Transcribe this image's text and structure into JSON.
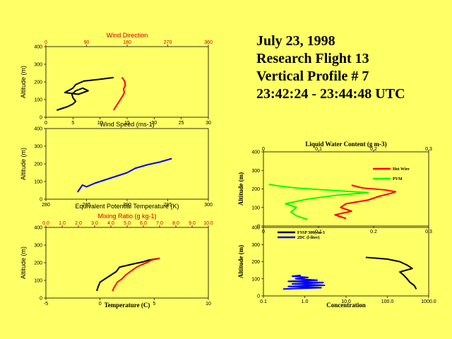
{
  "header": {
    "date": "July 23, 1998",
    "flight": "Research Flight 13",
    "profile": "Vertical Profile # 7",
    "time": "23:42:24 - 23:44:48 UTC"
  },
  "colors": {
    "background": "#ffff66",
    "black": "#000000",
    "red": "#ff0000",
    "blue": "#0000ff",
    "green": "#00ff00",
    "top_axis": "#cc0000"
  },
  "chart_data": [
    {
      "id": "wind",
      "type": "line",
      "xlabel": "Wind Speed (ms-1)",
      "x2label": "Wind Direction",
      "ylabel": "Altitude (m)",
      "xlim": [
        0,
        30
      ],
      "x2lim": [
        0,
        360
      ],
      "ylim": [
        0,
        400
      ],
      "xticks": [
        "0",
        "5",
        "10",
        "15",
        "20",
        "25",
        "30"
      ],
      "x2ticks": [
        "0",
        "90",
        "180",
        "270",
        "360"
      ],
      "yticks": [
        "0",
        "100",
        "200",
        "300",
        "400"
      ],
      "series": [
        {
          "name": "Wind Speed",
          "axis": "bottom",
          "color": "#000000",
          "x": [
            2.0,
            3.0,
            4.0,
            5.0,
            5.5,
            5.0,
            4.8,
            5.5,
            6.8,
            7.8,
            6.0,
            3.5,
            5.0,
            5.5,
            7.0,
            10.0,
            12.5
          ],
          "y": [
            40,
            50,
            60,
            75,
            90,
            110,
            130,
            150,
            165,
            150,
            130,
            140,
            165,
            185,
            205,
            215,
            225
          ]
        },
        {
          "name": "Wind Direction",
          "axis": "top",
          "color": "#ff0000",
          "x": [
            150,
            155,
            160,
            165,
            170,
            174,
            172,
            176,
            175,
            172,
            168
          ],
          "y": [
            40,
            60,
            80,
            100,
            120,
            140,
            160,
            180,
            200,
            215,
            225
          ]
        }
      ]
    },
    {
      "id": "theta_e",
      "type": "line",
      "xlabel": "Equivalent Potential Temperature (K)",
      "ylabel": "Altitude (m)",
      "xlim": [
        280,
        300
      ],
      "ylim": [
        0,
        400
      ],
      "xticks": [
        "280",
        "285",
        "290",
        "295",
        "300"
      ],
      "yticks": [
        "0",
        "100",
        "200",
        "300",
        "400"
      ],
      "series": [
        {
          "name": "Theta-e",
          "color": "#0000ff",
          "x": [
            283.9,
            284.2,
            284.5,
            285.0,
            286.0,
            287.0,
            288.0,
            289.0,
            290.0,
            291.0,
            292.5,
            294.0,
            295.5
          ],
          "y": [
            40,
            60,
            80,
            70,
            90,
            105,
            120,
            135,
            150,
            175,
            195,
            210,
            230
          ]
        }
      ]
    },
    {
      "id": "temperature",
      "type": "line",
      "xlabel": "Temperature (C)",
      "x2label": "Mixing Ratio (g kg-1)",
      "ylabel": "Altitude (m)",
      "xlim": [
        -5,
        10
      ],
      "x2lim": [
        0,
        10
      ],
      "ylim": [
        0,
        400
      ],
      "xticks": [
        "-5",
        "0",
        "5",
        "10"
      ],
      "x2ticks": [
        "0.0",
        "1.0",
        "2.0",
        "3.0",
        "4.0",
        "5.0",
        "6.0",
        "7.0",
        "8.0",
        "9.0",
        "10.0"
      ],
      "yticks": [
        "0",
        "100",
        "200",
        "300",
        "400"
      ],
      "series": [
        {
          "name": "Temperature",
          "axis": "bottom",
          "color": "#000000",
          "x": [
            -0.3,
            -0.2,
            0.0,
            0.5,
            1.0,
            1.5,
            1.8,
            2.5,
            3.2,
            4.0,
            4.5,
            5.5
          ],
          "y": [
            40,
            60,
            90,
            110,
            130,
            150,
            175,
            185,
            195,
            205,
            215,
            225
          ]
        },
        {
          "name": "Mixing Ratio",
          "axis": "top",
          "color": "#ff0000",
          "x": [
            4.1,
            4.2,
            4.4,
            4.7,
            4.9,
            5.2,
            5.5,
            5.8,
            6.2,
            6.5,
            7.0
          ],
          "y": [
            40,
            60,
            90,
            110,
            130,
            150,
            170,
            185,
            200,
            215,
            225
          ]
        }
      ]
    },
    {
      "id": "lwc",
      "type": "line",
      "xlabel": "Liquid Water Content (g m-3)",
      "ylabel": "Altitude (m)",
      "xlim": [
        0,
        0.3
      ],
      "ylim": [
        0,
        400
      ],
      "xticks": [
        "0",
        "0.1",
        "0.2",
        "0.3"
      ],
      "yticks": [
        "0",
        "100",
        "200",
        "300",
        "400"
      ],
      "series": [
        {
          "name": "Hot Wire",
          "color": "#ff0000",
          "x": [
            0.15,
            0.13,
            0.16,
            0.14,
            0.15,
            0.19,
            0.21,
            0.23,
            0.24,
            0.22,
            0.18,
            0.16
          ],
          "y": [
            40,
            60,
            80,
            100,
            120,
            140,
            160,
            175,
            185,
            195,
            205,
            220
          ]
        },
        {
          "name": "PVM",
          "color": "#00ff00",
          "x": [
            0.08,
            0.06,
            0.05,
            0.06,
            0.04,
            0.08,
            0.13,
            0.19,
            0.11,
            0.06,
            0.03,
            0.01
          ],
          "y": [
            35,
            55,
            75,
            100,
            120,
            145,
            165,
            180,
            195,
            205,
            215,
            225
          ]
        }
      ],
      "legend": {
        "position": "top-right",
        "entries": [
          "Hot Wire",
          "PVM"
        ]
      }
    },
    {
      "id": "concentration",
      "type": "line",
      "xlabel": "Concentration",
      "ylabel": "Altitude (m)",
      "xscale": "log",
      "xlim": [
        0.1,
        1000
      ],
      "ylim": [
        0,
        400
      ],
      "xticks": [
        "0.1",
        "1.0",
        "10.0",
        "100.0",
        "1000.0"
      ],
      "yticks": [
        "0",
        "100",
        "200",
        "300",
        "400"
      ],
      "series": [
        {
          "name": "FSSP 300(cm-3",
          "color": "#000000",
          "x": [
            500,
            450,
            350,
            300,
            250,
            200,
            400,
            300,
            200,
            100,
            30
          ],
          "y": [
            40,
            60,
            80,
            100,
            120,
            140,
            160,
            180,
            200,
            215,
            225
          ]
        },
        {
          "name": "2DC (l-liter)",
          "color": "#0000ff",
          "x": [
            0.3,
            2.5,
            0.4,
            3.0,
            0.5,
            2.8,
            0.4,
            2.0,
            0.6,
            1.2,
            0.5,
            0.8
          ],
          "y": [
            40,
            48,
            55,
            62,
            70,
            78,
            85,
            92,
            100,
            108,
            115,
            120
          ]
        }
      ],
      "legend": {
        "position": "top-left",
        "entries": [
          "FSSP 300(cm-3",
          "2DC (l-liter)"
        ]
      }
    }
  ]
}
